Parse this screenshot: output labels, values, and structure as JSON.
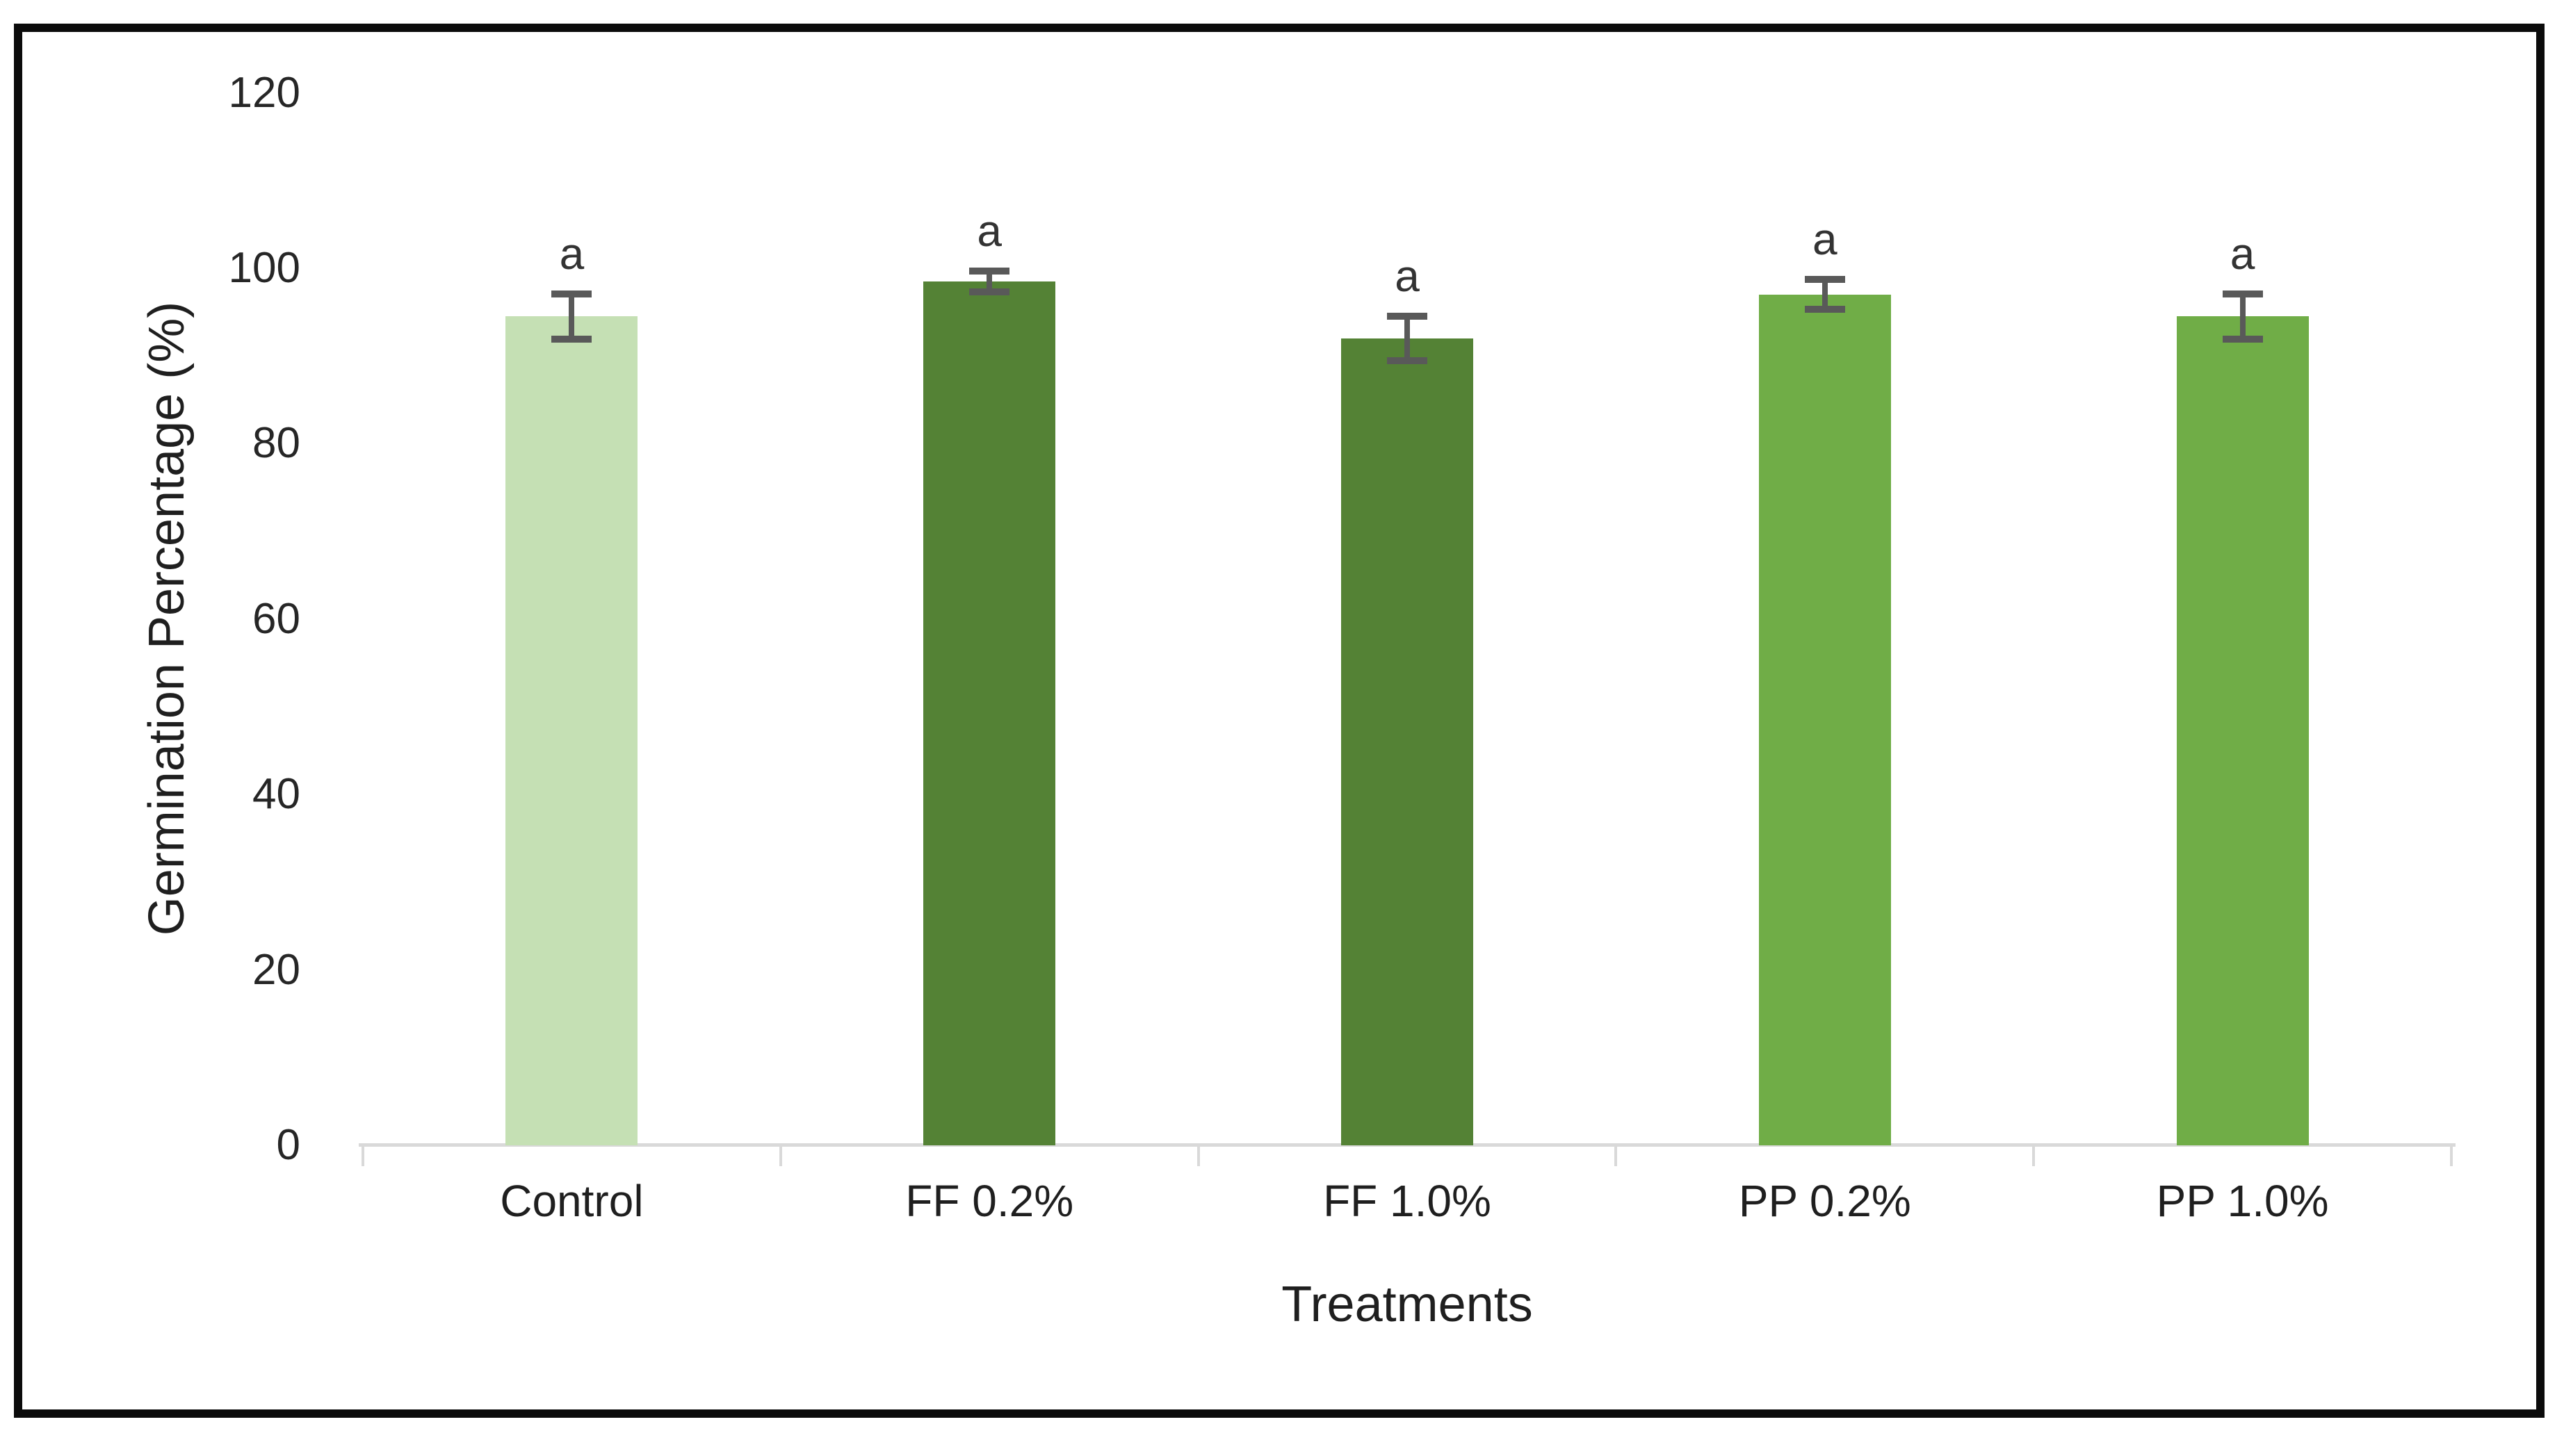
{
  "figure": {
    "frame_border_color": "#0b0b0b",
    "background_color": "#ffffff"
  },
  "chart_data": {
    "type": "bar",
    "title": "",
    "categories": [
      "Control",
      "FF 0.2%",
      "FF 1.0%",
      "PP 0.2%",
      "PP 1.0%"
    ],
    "values": [
      94.5,
      98.5,
      92,
      97,
      94.5
    ],
    "error_bars": [
      2.6,
      1.2,
      2.5,
      1.7,
      2.6
    ],
    "significance_letters": [
      "a",
      "a",
      "a",
      "a",
      "a"
    ],
    "bar_colors": [
      "#C5E0B4",
      "#548235",
      "#548235",
      "#70AD47",
      "#70AD47"
    ],
    "error_bar_color": "#595959",
    "axis_line_color": "#D9D9D9",
    "xlabel": "Treatments",
    "ylabel": "Germination Percentage (%)",
    "yticks": [
      0,
      20,
      40,
      60,
      80,
      100,
      120
    ],
    "ylim": [
      0,
      120
    ],
    "grid": false,
    "legend": false
  }
}
